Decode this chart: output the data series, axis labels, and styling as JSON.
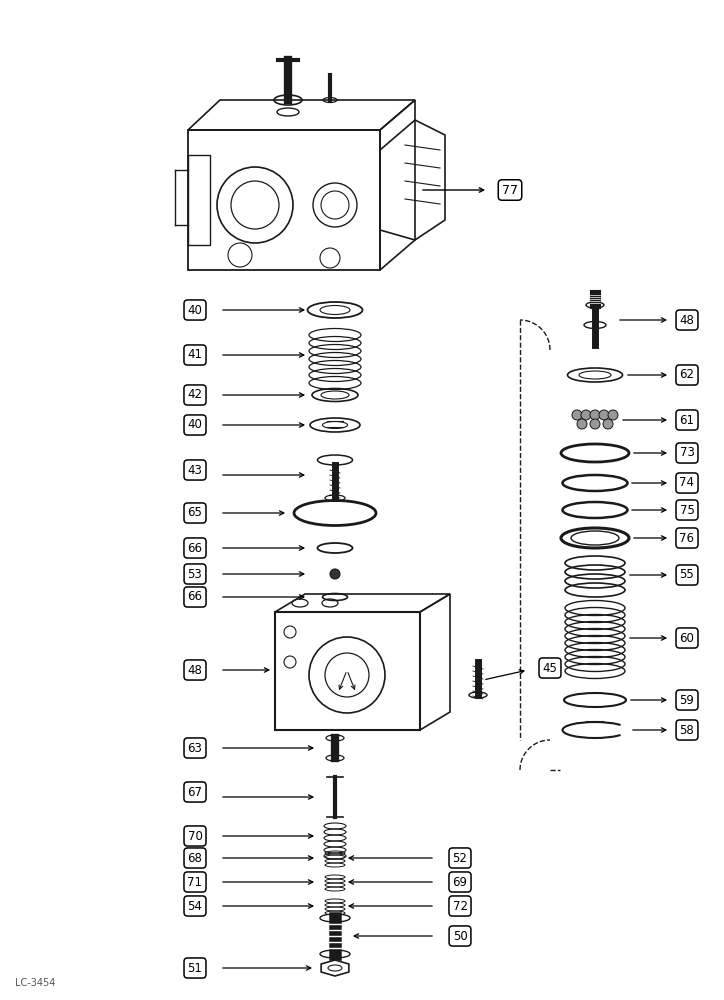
{
  "bg_color": "#ffffff",
  "line_color": "#1a1a1a",
  "watermark": "LC-3454",
  "fig_w": 7.24,
  "fig_h": 10.0,
  "dpi": 100
}
